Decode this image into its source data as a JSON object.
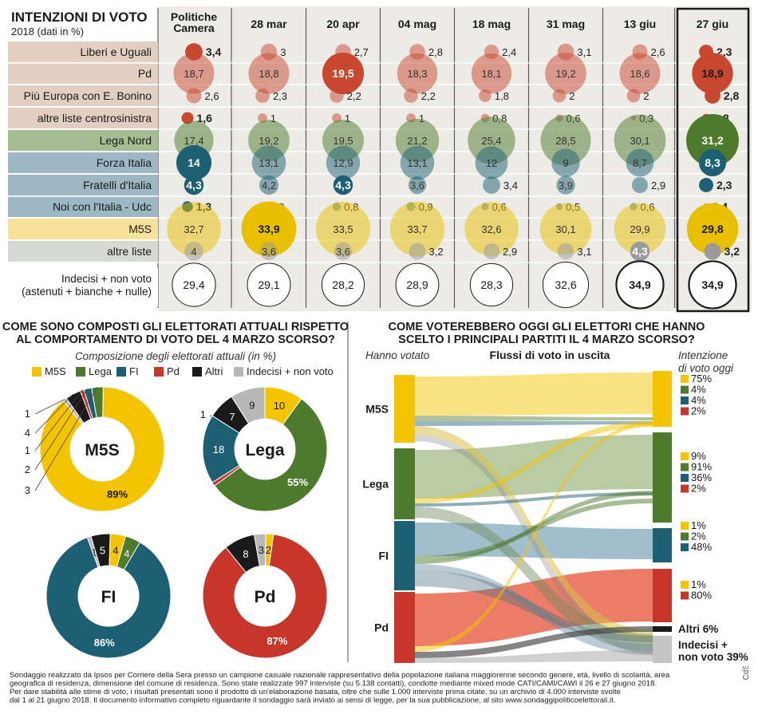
{
  "top": {
    "title": "INTENZIONI DI VOTO",
    "subtitle": "2018 (dati in %)",
    "columns": [
      "Politiche\nCamera",
      "28 mar",
      "20 apr",
      "04 mag",
      "18 mag",
      "31 mag",
      "13 giu",
      "27 giu"
    ],
    "highlight_column": 7,
    "rows": [
      {
        "label": "Liberi e Uguali",
        "bg": "#e2cfc2",
        "color": "#c8472f",
        "values": [
          3.4,
          3,
          2.7,
          2.8,
          2.4,
          3.1,
          2.6,
          2.3
        ]
      },
      {
        "label": "Pd",
        "bg": "#e2cfc2",
        "color": "#c8472f",
        "values": [
          18.7,
          18.8,
          19.5,
          18.3,
          18.1,
          19.2,
          18.6,
          18.9
        ]
      },
      {
        "label": "Più Europa con E. Bonino",
        "bg": "#e2cfc2",
        "color": "#c8472f",
        "values": [
          2.6,
          2.3,
          2.2,
          2.2,
          1.8,
          2,
          2,
          2.8
        ]
      },
      {
        "label": "altre liste centrosinistra",
        "bg": "#e2cfc2",
        "color": "#c8472f",
        "values": [
          1.6,
          1,
          1,
          1,
          0.8,
          0.6,
          0.3,
          0.8
        ]
      },
      {
        "label": "Lega Nord",
        "bg": "#a6bd92",
        "color": "#4e7a2c",
        "values": [
          17.4,
          19.2,
          19.5,
          21.2,
          25.4,
          28.5,
          30.1,
          31.2
        ]
      },
      {
        "label": "Forza Italia",
        "bg": "#9db8c4",
        "color": "#1d5f73",
        "values": [
          14,
          13.1,
          12.9,
          13.1,
          12,
          9,
          8.7,
          8.3
        ]
      },
      {
        "label": "Fratelli d'Italia",
        "bg": "#9db8c4",
        "color": "#1d5f73",
        "values": [
          4.3,
          4.2,
          4.3,
          3.6,
          3.4,
          3.9,
          2.9,
          2.3
        ]
      },
      {
        "label": "Noi con l'Italia - Udc",
        "bg": "#9db8c4",
        "color": "#1d5f73",
        "values": [
          1.3,
          0.9,
          0.8,
          0.9,
          0.6,
          0.5,
          0.6,
          0.4
        ]
      },
      {
        "label": "M5S",
        "bg": "#f8e29a",
        "color": "#e9c000",
        "values": [
          32.7,
          33.9,
          33.5,
          33.7,
          32.6,
          30.1,
          29.9,
          29.8
        ]
      },
      {
        "label": "altre liste",
        "bg": "#d7d9d5",
        "color": "#9a9a9a",
        "values": [
          4,
          3.6,
          3.6,
          3.2,
          2.9,
          3.1,
          4.3,
          3.2
        ]
      }
    ],
    "highlights": [
      [
        true,
        false,
        false,
        false,
        false,
        false,
        false,
        true
      ],
      [
        false,
        false,
        true,
        false,
        false,
        false,
        false,
        true
      ],
      [
        false,
        false,
        false,
        false,
        false,
        false,
        false,
        true
      ],
      [
        true,
        false,
        false,
        false,
        false,
        false,
        false,
        true
      ],
      [
        false,
        false,
        false,
        false,
        false,
        false,
        false,
        true
      ],
      [
        true,
        false,
        false,
        false,
        false,
        false,
        false,
        true
      ],
      [
        true,
        false,
        true,
        false,
        false,
        false,
        false,
        true
      ],
      [
        true,
        false,
        false,
        false,
        false,
        false,
        false,
        true
      ],
      [
        false,
        true,
        false,
        false,
        false,
        false,
        false,
        true
      ],
      [
        false,
        false,
        false,
        false,
        false,
        false,
        true,
        true
      ]
    ],
    "undecided": {
      "label": "Indecisi + non voto\n(astenuti + bianche + nulle)",
      "values": [
        29.4,
        29.1,
        28.2,
        28.9,
        28.3,
        32.6,
        34.9,
        34.9
      ],
      "bold": [
        false,
        false,
        false,
        false,
        false,
        false,
        true,
        true
      ]
    }
  },
  "left": {
    "title": "COME SONO COMPOSTI GLI ELETTORATI ATTUALI RISPETTO\nAL COMPORTAMENTO DI VOTO DEL 4 MARZO SCORSO?",
    "subtitle": "Composizione degli elettorati attuali (in %)",
    "legend": [
      {
        "name": "M5S",
        "color": "#f4c400"
      },
      {
        "name": "Lega",
        "color": "#4e7a2c"
      },
      {
        "name": "FI",
        "color": "#1d5f73"
      },
      {
        "name": "Pd",
        "color": "#c8352b"
      },
      {
        "name": "Altri",
        "color": "#1a1a1a"
      },
      {
        "name": "Indecisi + non voto",
        "color": "#b8b8b8"
      }
    ]
  },
  "right": {
    "title": "COME VOTEREBBERO OGGI GLI ELETTORI CHE HANNO\nSCELTO I PRINCIPALI PARTITI IL 4 MARZO SCORSO?",
    "left_header": "Hanno votato",
    "center_header": "Flussi di voto in uscita",
    "right_header": "Intenzione\ndi voto oggi",
    "sources": [
      "M5S",
      "Lega",
      "FI",
      "Pd"
    ],
    "group_labels": [
      [
        "75%",
        "4%",
        "4%",
        "2%"
      ],
      [
        "9%",
        "91%",
        "36%",
        "2%"
      ],
      [
        "1%",
        "2%",
        "48%"
      ],
      [
        "1%",
        "80%"
      ]
    ],
    "altri_label": "Altri 6%",
    "indecisi_label": "Indecisi +\nnon voto 39%"
  },
  "footer": {
    "text": "Sondaggio realizzato da Ipsos per Corriere della Sera presso un campione casuale nazionale rappresentativo della popolazione italiana maggiorenne secondo genere, età, livello di scolarità, area\ngeografica di residenza, dimensione del comune di residenza. Sono state realizzate 997 interviste (su 5.138 contatti), condotte mediante mixed mode CATI/CAMI/CAWI  il 26 e 27 giugno 2018.\nPer dare stabilità alle stime di voto, i risultati presentati sono il prodotto di un'elaborazione basata, oltre che sulle 1.000 interviste prima citate, su un archivio di 4.000 interviste svolte\ndal 1 al 21 giugno 2018. Il documento informativo completo riguardante il sondaggio sarà inviato ai sensi di legge, per la sua pubblicazione, al sito www.sondaggipoliticoelettorali.it.",
    "credit": "CdS"
  },
  "chart_data": [
    {
      "type": "table",
      "title": "INTENZIONI DI VOTO",
      "categories": [
        "Politiche Camera",
        "28 mar",
        "20 apr",
        "04 mag",
        "18 mag",
        "31 mag",
        "13 giu",
        "27 giu"
      ],
      "series": [
        {
          "name": "Liberi e Uguali",
          "values": [
            3.4,
            3,
            2.7,
            2.8,
            2.4,
            3.1,
            2.6,
            2.3
          ]
        },
        {
          "name": "Pd",
          "values": [
            18.7,
            18.8,
            19.5,
            18.3,
            18.1,
            19.2,
            18.6,
            18.9
          ]
        },
        {
          "name": "Più Europa con E. Bonino",
          "values": [
            2.6,
            2.3,
            2.2,
            2.2,
            1.8,
            2,
            2,
            2.8
          ]
        },
        {
          "name": "altre liste centrosinistra",
          "values": [
            1.6,
            1,
            1,
            1,
            0.8,
            0.6,
            0.3,
            0.8
          ]
        },
        {
          "name": "Lega Nord",
          "values": [
            17.4,
            19.2,
            19.5,
            21.2,
            25.4,
            28.5,
            30.1,
            31.2
          ]
        },
        {
          "name": "Forza Italia",
          "values": [
            14,
            13.1,
            12.9,
            13.1,
            12,
            9,
            8.7,
            8.3
          ]
        },
        {
          "name": "Fratelli d'Italia",
          "values": [
            4.3,
            4.2,
            4.3,
            3.6,
            3.4,
            3.9,
            2.9,
            2.3
          ]
        },
        {
          "name": "Noi con l'Italia - Udc",
          "values": [
            1.3,
            0.9,
            0.8,
            0.9,
            0.6,
            0.5,
            0.6,
            0.4
          ]
        },
        {
          "name": "M5S",
          "values": [
            32.7,
            33.9,
            33.5,
            33.7,
            32.6,
            30.1,
            29.9,
            29.8
          ]
        },
        {
          "name": "altre liste",
          "values": [
            4,
            3.6,
            3.6,
            3.2,
            2.9,
            3.1,
            4.3,
            3.2
          ]
        },
        {
          "name": "Indecisi + non voto",
          "values": [
            29.4,
            29.1,
            28.2,
            28.9,
            28.3,
            32.6,
            34.9,
            34.9
          ]
        }
      ]
    },
    {
      "type": "pie",
      "title": "M5S",
      "slices": [
        {
          "name": "M5S",
          "value": 89,
          "label": "89%",
          "color": "#f4c400"
        },
        {
          "name": "Lega",
          "value": 3,
          "label": "3",
          "color": "#4e7a2c"
        },
        {
          "name": "FI",
          "value": 2,
          "label": "2",
          "color": "#1d5f73"
        },
        {
          "name": "Pd",
          "value": 1,
          "label": "1",
          "color": "#c8352b"
        },
        {
          "name": "Altri",
          "value": 4,
          "label": "4",
          "color": "#1a1a1a"
        },
        {
          "name": "Indecisi + non voto",
          "value": 1,
          "label": "1",
          "color": "#b8b8b8"
        }
      ]
    },
    {
      "type": "pie",
      "title": "Lega",
      "slices": [
        {
          "name": "M5S",
          "value": 10,
          "label": "10",
          "color": "#f4c400"
        },
        {
          "name": "Lega",
          "value": 55,
          "label": "55%",
          "color": "#4e7a2c"
        },
        {
          "name": "FI",
          "value": 18,
          "label": "18",
          "color": "#1d5f73"
        },
        {
          "name": "Pd",
          "value": 1,
          "label": "1",
          "color": "#c8352b"
        },
        {
          "name": "Altri",
          "value": 7,
          "label": "7",
          "color": "#1a1a1a"
        },
        {
          "name": "Indecisi + non voto",
          "value": 9,
          "label": "9",
          "color": "#b8b8b8"
        }
      ]
    },
    {
      "type": "pie",
      "title": "FI",
      "slices": [
        {
          "name": "M5S",
          "value": 4,
          "label": "4",
          "color": "#f4c400"
        },
        {
          "name": "Lega",
          "value": 4,
          "label": "4",
          "color": "#4e7a2c"
        },
        {
          "name": "FI",
          "value": 86,
          "label": "86%",
          "color": "#1d5f73"
        },
        {
          "name": "Altri",
          "value": 5,
          "label": "5",
          "color": "#1a1a1a"
        },
        {
          "name": "Indecisi + non voto",
          "value": 1,
          "label": "1",
          "color": "#b8b8b8"
        }
      ]
    },
    {
      "type": "pie",
      "title": "Pd",
      "slices": [
        {
          "name": "M5S",
          "value": 2,
          "label": "2",
          "color": "#f4c400"
        },
        {
          "name": "Pd",
          "value": 87,
          "label": "87%",
          "color": "#c8352b"
        },
        {
          "name": "Altri",
          "value": 8,
          "label": "8",
          "color": "#1a1a1a"
        },
        {
          "name": "Indecisi + non voto",
          "value": 3,
          "label": "3",
          "color": "#b8b8b8"
        }
      ]
    },
    {
      "type": "sankey",
      "title": "Flussi di voto in uscita",
      "sources": [
        "M5S",
        "Lega",
        "FI",
        "Pd"
      ],
      "targets": [
        "M5S",
        "Lega",
        "FI",
        "Pd",
        "Altri",
        "Indecisi + non voto"
      ],
      "target_labels": {
        "M5S": [
          "75%",
          "4%",
          "4%",
          "2%"
        ],
        "Lega": [
          "9%",
          "91%",
          "36%",
          "2%"
        ],
        "FI": [
          "1%",
          "2%",
          "48%"
        ],
        "Pd": [
          "1%",
          "80%"
        ],
        "Altri": [
          "6%"
        ],
        "Indecisi + non voto": [
          "39%"
        ]
      }
    }
  ]
}
